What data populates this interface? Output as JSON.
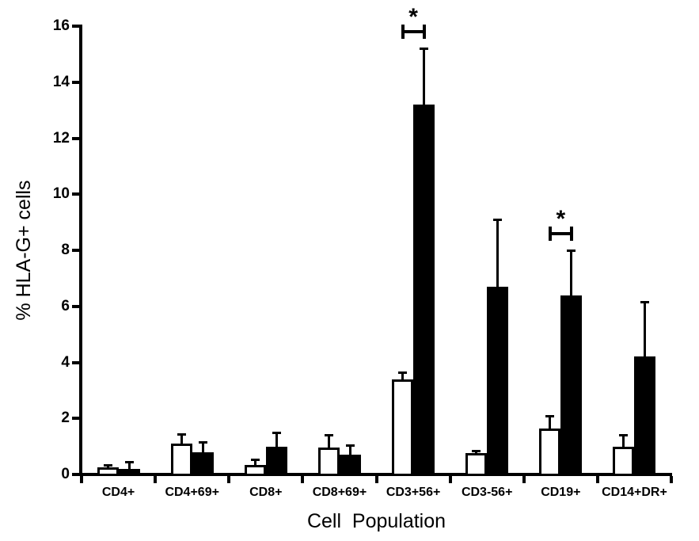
{
  "figure": {
    "background": "#ffffff",
    "axis_color": "#000000",
    "significance_marker_color": "#000000"
  },
  "chart_data": {
    "type": "bar",
    "title": "",
    "xlabel": "Cell  Population",
    "ylabel": "% HLA-G+ cells",
    "ylim": [
      0,
      16
    ],
    "yticks": [
      0,
      2,
      4,
      6,
      8,
      10,
      12,
      14,
      16
    ],
    "grid": false,
    "legend": "none",
    "categories": [
      "CD4+",
      "CD4+69+",
      "CD8+",
      "CD8+69+",
      "CD3+56+",
      "CD3-56+",
      "CD19+",
      "CD14+DR+"
    ],
    "series": [
      {
        "name": "open-bars",
        "fill": "#ffffff",
        "stroke": "#000000",
        "values": [
          0.25,
          1.1,
          0.35,
          0.95,
          3.4,
          0.75,
          1.65,
          1.0
        ],
        "errors_plus": [
          0.1,
          0.35,
          0.2,
          0.45,
          0.25,
          0.1,
          0.45,
          0.4
        ]
      },
      {
        "name": "solid-bars",
        "fill": "#000000",
        "stroke": "#000000",
        "values": [
          0.2,
          0.8,
          1.0,
          0.7,
          13.2,
          6.7,
          6.4,
          4.2
        ],
        "errors_plus": [
          0.25,
          0.35,
          0.5,
          0.35,
          2.0,
          2.4,
          1.6,
          1.95
        ]
      }
    ],
    "significance": [
      {
        "category": "CD3+56+",
        "label": "*"
      },
      {
        "category": "CD19+",
        "label": "*"
      }
    ]
  }
}
